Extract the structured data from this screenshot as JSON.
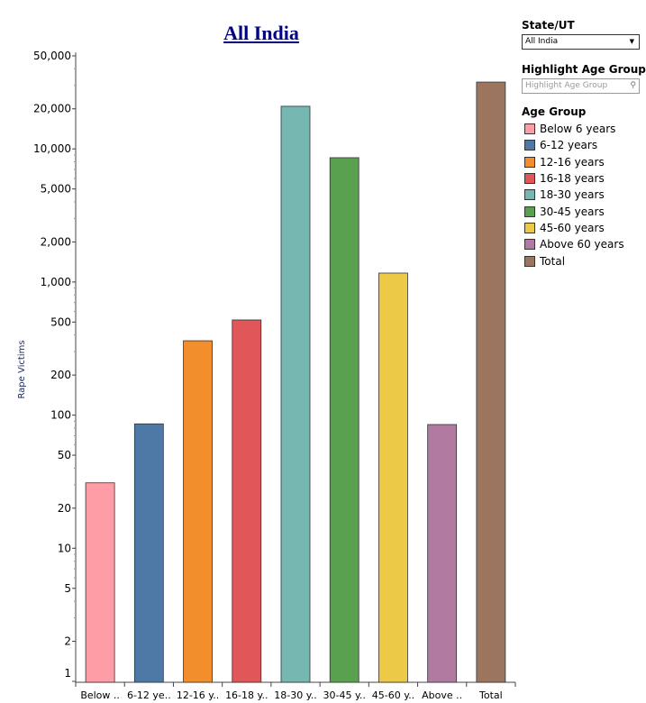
{
  "chart_data": {
    "type": "bar",
    "title": "All India",
    "ylabel": "Rape Victims",
    "xlabel": "",
    "yscale": "log",
    "ylim": [
      1,
      53000
    ],
    "yticks": [
      1,
      2,
      5,
      10,
      20,
      50,
      100,
      200,
      500,
      1000,
      2000,
      5000,
      10000,
      20000,
      50000
    ],
    "ytick_labels": [
      "1",
      "2",
      "5",
      "10",
      "20",
      "50",
      "100",
      "200",
      "500",
      "1,000",
      "2,000",
      "5,000",
      "10,000",
      "20,000",
      "50,000"
    ],
    "categories": [
      "Below 6 years",
      "6-12 years",
      "12-16 years",
      "16-18 years",
      "18-30 years",
      "30-45 years",
      "45-60 years",
      "Above 60 years",
      "Total"
    ],
    "category_labels": [
      "Below ..",
      "6-12 ye..",
      "12-16 y..",
      "16-18 y..",
      "18-30 y..",
      "30-45 y..",
      "45-60 y..",
      "Above ..",
      "Total"
    ],
    "values": [
      31,
      86,
      362,
      519,
      20900,
      8590,
      1167,
      85,
      31770
    ],
    "colors": [
      "#FF9DA7",
      "#4E79A7",
      "#F28E2B",
      "#E15759",
      "#76B7B2",
      "#59A14F",
      "#EDC948",
      "#B07AA1",
      "#9C755F"
    ]
  },
  "filters": {
    "state_label": "State/UT",
    "state_value": "All India",
    "highlight_label": "Highlight Age Group",
    "highlight_placeholder": "Highlight Age Group"
  },
  "legend": {
    "title": "Age Group",
    "items": [
      "Below 6 years",
      "6-12 years",
      "12-16 years",
      "16-18 years",
      "18-30 years",
      "30-45 years",
      "45-60 years",
      "Above 60 years",
      "Total"
    ]
  }
}
